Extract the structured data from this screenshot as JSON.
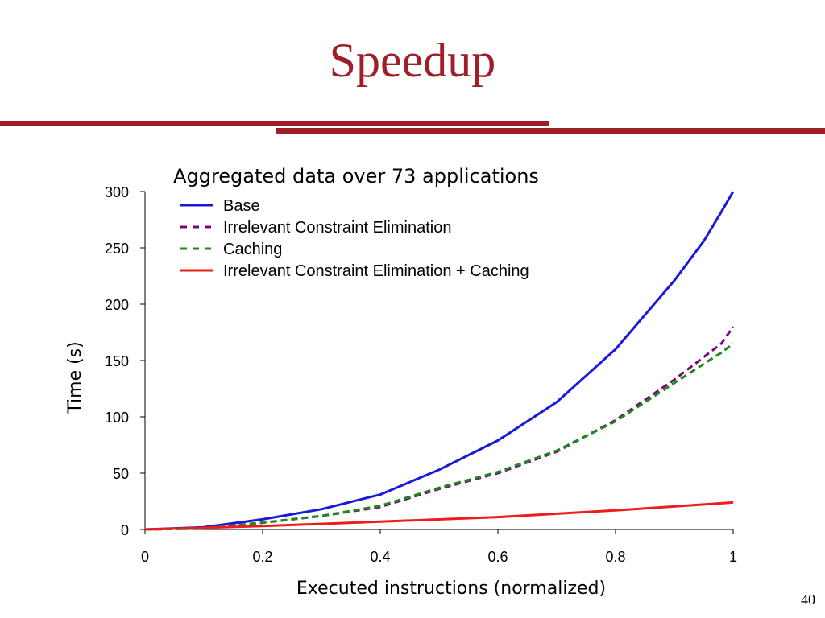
{
  "slide": {
    "title": "Speedup",
    "page_number": "40",
    "accent_color": "#9e1f27"
  },
  "chart_data": {
    "type": "line",
    "title": "Aggregated data over 73 applications",
    "xlabel": "Executed instructions (normalized)",
    "ylabel": "Time (s)",
    "xlim": [
      0,
      1
    ],
    "ylim": [
      0,
      300
    ],
    "xticks": [
      "0",
      "0.2",
      "0.4",
      "0.6",
      "0.8",
      "1"
    ],
    "xtick_values": [
      0,
      0.2,
      0.4,
      0.6,
      0.8,
      1
    ],
    "yticks": [
      "0",
      "50",
      "100",
      "150",
      "200",
      "250",
      "300"
    ],
    "ytick_values": [
      0,
      50,
      100,
      150,
      200,
      250,
      300
    ],
    "grid": false,
    "legend_position": "top-left",
    "series": [
      {
        "name": "Base",
        "color": "#1a1adb",
        "dash": "solid",
        "x": [
          0,
          0.1,
          0.2,
          0.3,
          0.4,
          0.5,
          0.6,
          0.7,
          0.8,
          0.9,
          0.95,
          0.98,
          1.0
        ],
        "y": [
          0,
          2,
          9,
          18,
          31,
          53,
          79,
          113,
          160,
          221,
          256,
          282,
          300
        ]
      },
      {
        "name": "Irrelevant Constraint Elimination",
        "color": "#800080",
        "dash": "dashed",
        "x": [
          0,
          0.1,
          0.2,
          0.3,
          0.4,
          0.5,
          0.6,
          0.7,
          0.8,
          0.9,
          0.95,
          0.98,
          1.0
        ],
        "y": [
          0,
          1,
          6,
          12,
          20,
          36,
          50,
          69,
          97,
          133,
          153,
          165,
          180
        ]
      },
      {
        "name": "Caching",
        "color": "#1a8a1a",
        "dash": "dashed",
        "x": [
          0,
          0.1,
          0.2,
          0.3,
          0.4,
          0.5,
          0.6,
          0.7,
          0.8,
          0.9,
          0.95,
          0.98,
          1.0
        ],
        "y": [
          0,
          1,
          6,
          12,
          21,
          37,
          51,
          70,
          96,
          130,
          147,
          157,
          165
        ]
      },
      {
        "name": "Irrelevant Constraint Elimination + Caching",
        "color": "#ee1c1c",
        "dash": "solid",
        "x": [
          0,
          0.2,
          0.4,
          0.6,
          0.8,
          1.0
        ],
        "y": [
          0,
          3,
          7,
          11,
          17,
          24
        ]
      }
    ]
  }
}
